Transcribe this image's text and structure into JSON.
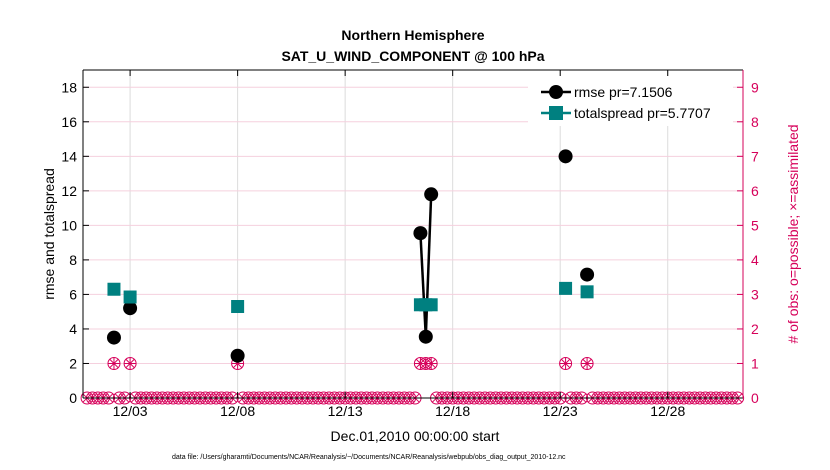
{
  "chart_data": {
    "type": "line",
    "title": "Northern Hemisphere",
    "subtitle": "SAT_U_WIND_COMPONENT @ 100 hPa",
    "xlabel": "Dec.01,2010 00:00:00 start",
    "ylabel": "rmse and totalspread",
    "y2label": "# of obs: o=possible; ×=assimilated",
    "xunits": "days since Dec.01,2010 00:00",
    "xlim": [
      -0.19,
      30.5
    ],
    "ylim": [
      0,
      19
    ],
    "y2lim": [
      0,
      9.5
    ],
    "xticks": [
      2,
      7,
      12,
      17,
      22,
      27
    ],
    "xtick_labels": [
      "12/03",
      "12/08",
      "12/13",
      "12/18",
      "12/23",
      "12/28"
    ],
    "yticks": [
      0,
      2,
      4,
      6,
      8,
      10,
      12,
      14,
      16,
      18
    ],
    "y2ticks": [
      0,
      1,
      2,
      3,
      4,
      5,
      6,
      7,
      8,
      9
    ],
    "grid": true,
    "legend_position": "top-right",
    "series": [
      {
        "name": "rmse pr=7.1506",
        "color": "#000000",
        "marker": "circle",
        "x": [
          1.25,
          2.0,
          7.0,
          15.5,
          15.75,
          16.0,
          22.25,
          23.25
        ],
        "values": [
          3.5,
          5.2,
          2.45,
          9.55,
          3.55,
          11.8,
          14.0,
          7.15
        ]
      },
      {
        "name": "totalspread pr=5.7707",
        "color": "#008080",
        "marker": "square",
        "x": [
          1.25,
          2.0,
          7.0,
          15.5,
          15.75,
          16.0,
          22.25,
          23.25
        ],
        "values": [
          6.3,
          5.85,
          5.3,
          5.4,
          5.4,
          5.4,
          6.35,
          6.15
        ]
      }
    ],
    "obs_counts": {
      "color": "#d6005a",
      "bin_start": 0,
      "bin_step": 0.25,
      "bin_end": 30.25,
      "default_count": 0,
      "nonzero": [
        {
          "x": 1.25,
          "count": 1
        },
        {
          "x": 2.0,
          "count": 1
        },
        {
          "x": 7.0,
          "count": 1
        },
        {
          "x": 15.5,
          "count": 1
        },
        {
          "x": 15.75,
          "count": 1
        },
        {
          "x": 16.0,
          "count": 1
        },
        {
          "x": 22.25,
          "count": 1
        },
        {
          "x": 23.25,
          "count": 1
        }
      ]
    }
  },
  "footer": "data file: /Users/gharamti/Documents/NCAR/Reanalysis/~/Documents/NCAR/Reanalysis/webpub/obs_diag_output_2010-12.nc"
}
